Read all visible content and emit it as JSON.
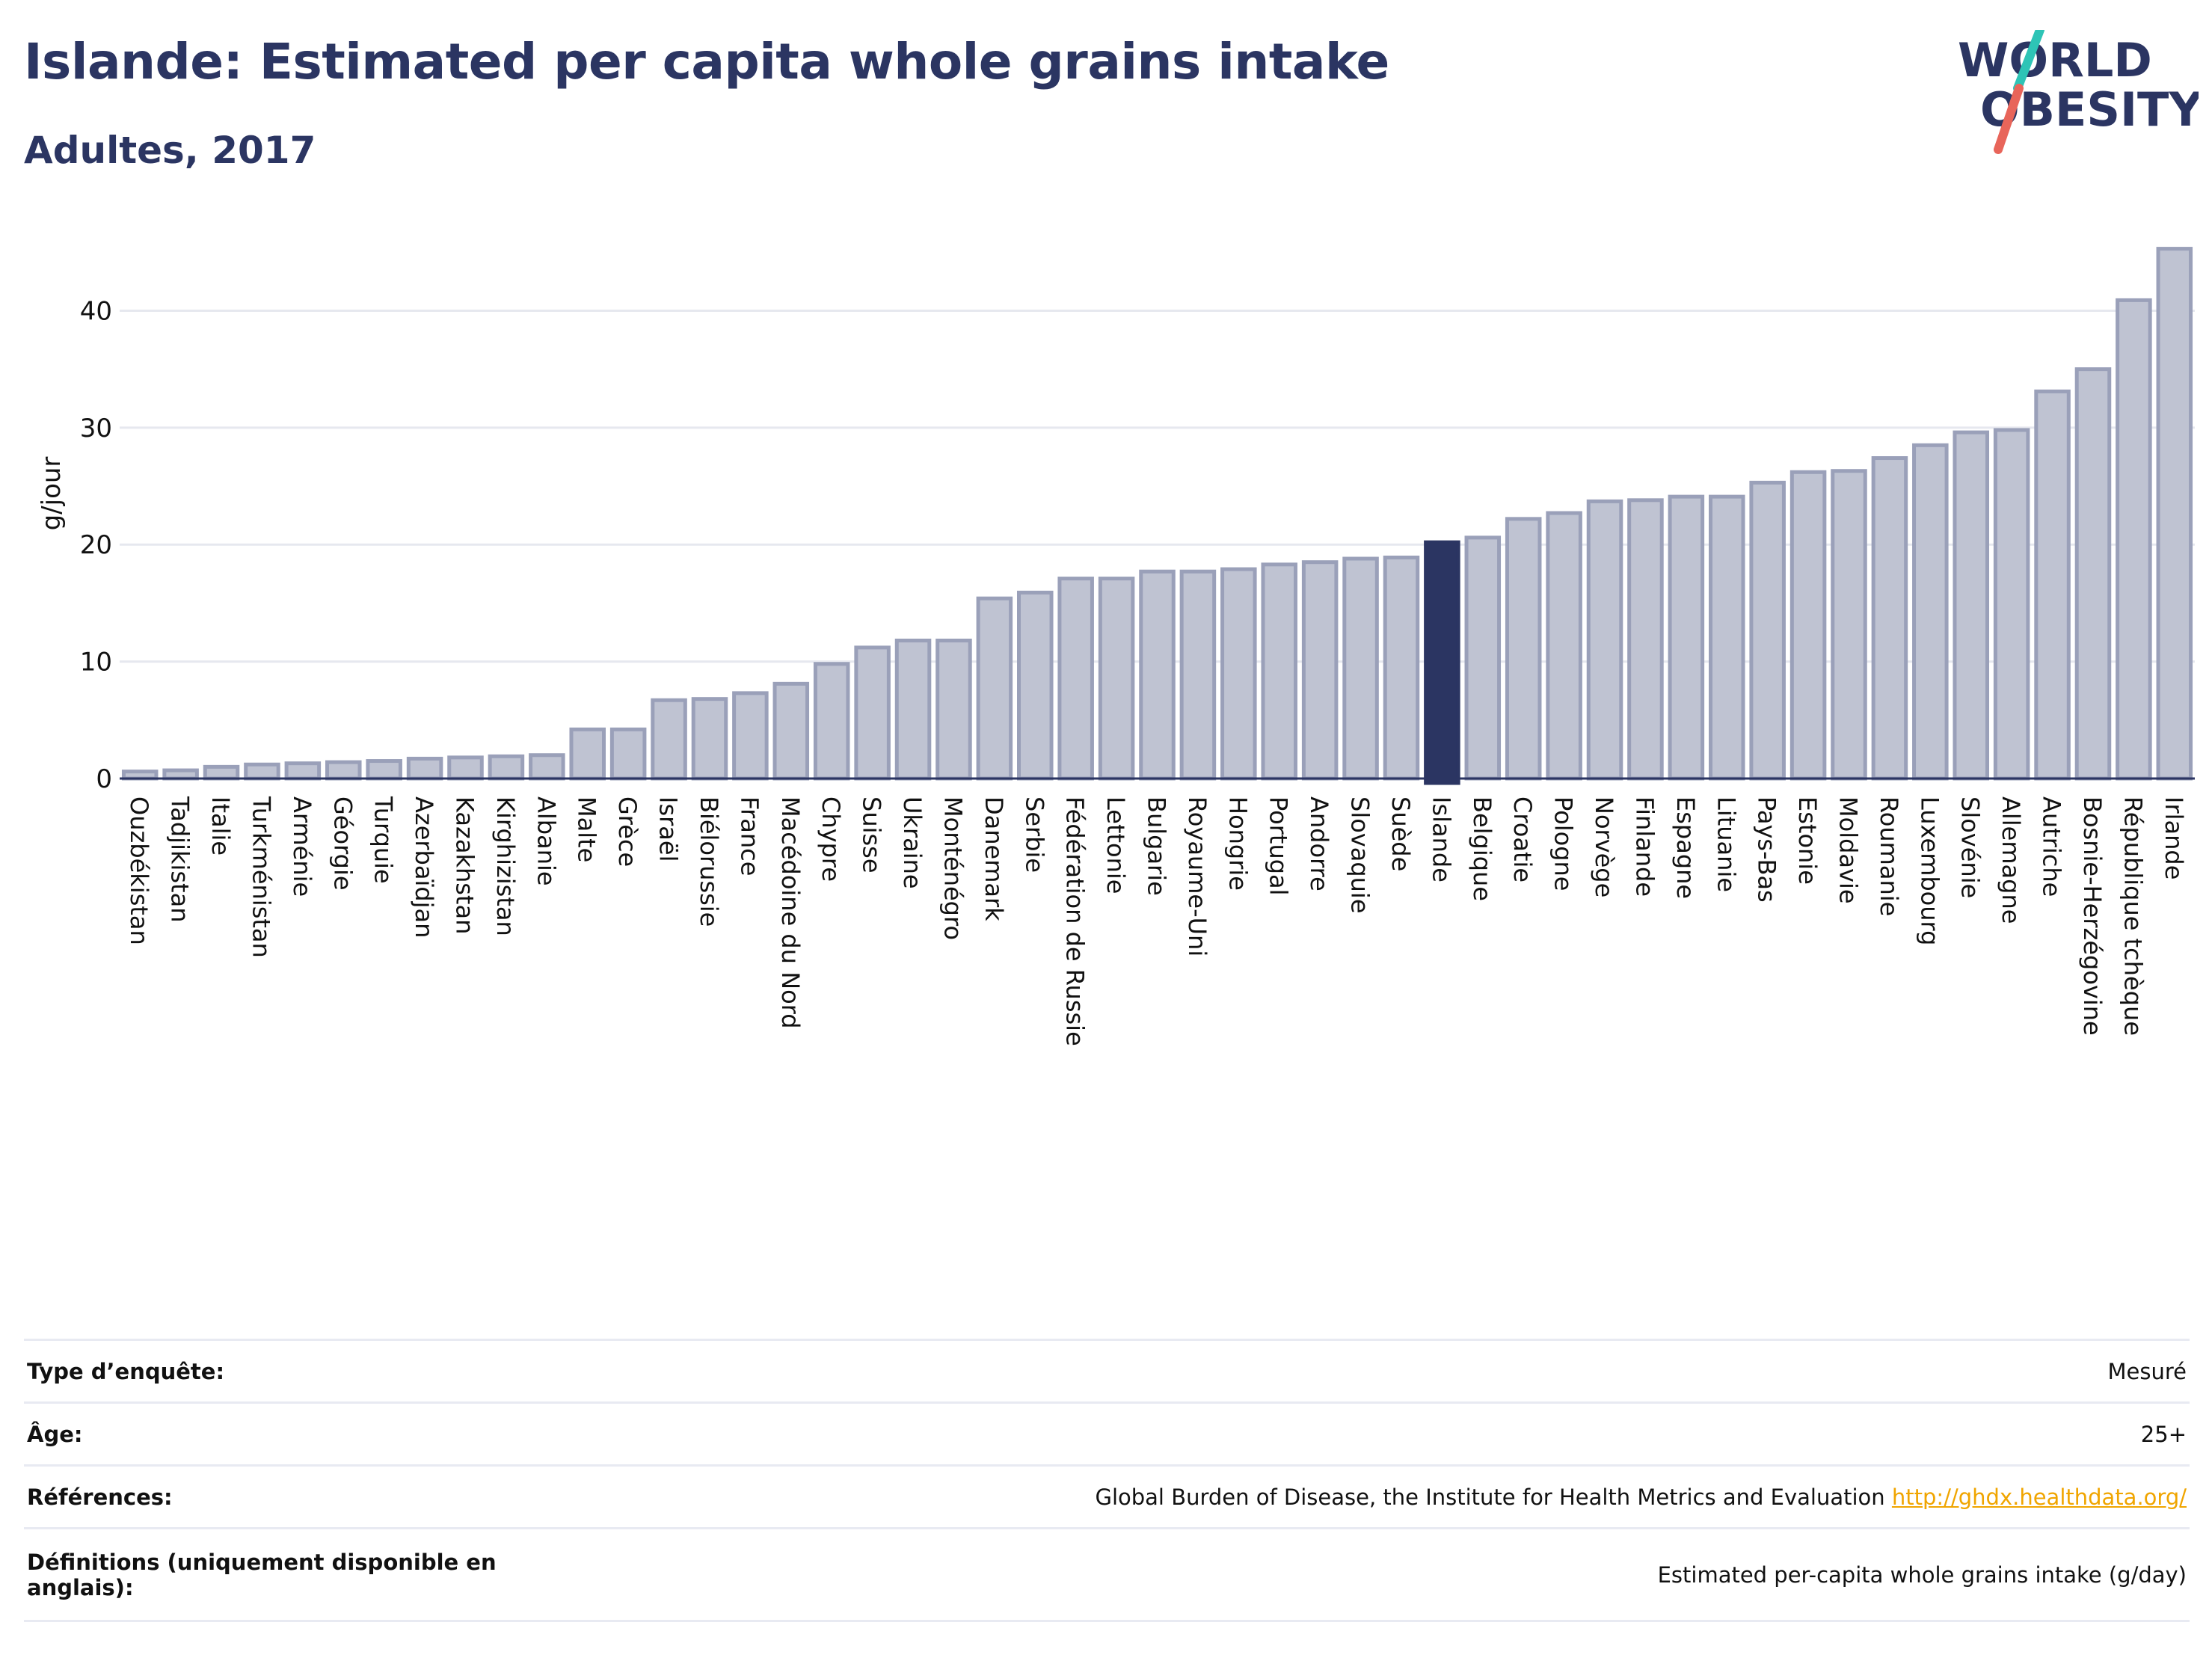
{
  "header": {
    "title": "Islande: Estimated per capita whole grains intake",
    "subtitle": "Adultes, 2017"
  },
  "logo": {
    "line1": "WORLD",
    "line2": "OBESITY"
  },
  "colors": {
    "title": "#2b3562",
    "bar": "#bfc3d2",
    "bar_border": "#9aa0b9",
    "highlight": "#2b3562",
    "link": "#f0a500",
    "logo_teal": "#2ec4b6",
    "logo_red": "#e8655a"
  },
  "chart_data": {
    "type": "bar",
    "ylabel": "g/jour",
    "ylim": [
      0,
      47
    ],
    "yticks": [
      0,
      10,
      20,
      30,
      40
    ],
    "grid": true,
    "highlight": "Islande",
    "categories": [
      "Ouzbékistan",
      "Tadjikistan",
      "Italie",
      "Turkménistan",
      "Arménie",
      "Géorgie",
      "Turquie",
      "Azerbaïdjan",
      "Kazakhstan",
      "Kirghizistan",
      "Albanie",
      "Malte",
      "Grèce",
      "Israël",
      "Biélorussie",
      "France",
      "Macédoine du Nord",
      "Chypre",
      "Suisse",
      "Ukraine",
      "Monténégro",
      "Danemark",
      "Serbie",
      "Fédération de Russie",
      "Lettonie",
      "Bulgarie",
      "Royaume-Uni",
      "Hongrie",
      "Portugal",
      "Andorre",
      "Slovaquie",
      "Suède",
      "Islande",
      "Belgique",
      "Croatie",
      "Pologne",
      "Norvège",
      "Finlande",
      "Espagne",
      "Lituanie",
      "Pays-Bas",
      "Estonie",
      "Moldavie",
      "Roumanie",
      "Luxembourg",
      "Slovénie",
      "Allemagne",
      "Autriche",
      "Bosnie-Herzégovine",
      "République tchèque",
      "Irlande"
    ],
    "values": [
      0.6,
      0.7,
      1.0,
      1.2,
      1.3,
      1.4,
      1.5,
      1.7,
      1.8,
      1.9,
      2.0,
      4.2,
      4.2,
      6.7,
      6.8,
      7.3,
      8.1,
      9.8,
      11.2,
      11.8,
      11.8,
      15.4,
      15.9,
      17.1,
      17.1,
      17.7,
      17.7,
      17.9,
      18.3,
      18.5,
      18.8,
      18.9,
      20.2,
      20.6,
      22.2,
      22.7,
      23.7,
      23.8,
      24.1,
      24.1,
      25.3,
      26.2,
      26.3,
      27.4,
      28.5,
      29.6,
      29.8,
      33.1,
      35.0,
      40.9,
      45.3
    ]
  },
  "info_table": {
    "rows": [
      {
        "label": "Type d’enquête:",
        "value": "Mesuré"
      },
      {
        "label": "Âge:",
        "value": "25+"
      },
      {
        "label": "Références:",
        "value": "Global Burden of Disease, the Institute for Health Metrics and Evaluation",
        "link": "http://ghdx.healthdata.org/"
      },
      {
        "label": "Définitions (uniquement disponible en anglais):",
        "value": "Estimated per-capita whole grains intake (g/day)"
      }
    ]
  }
}
